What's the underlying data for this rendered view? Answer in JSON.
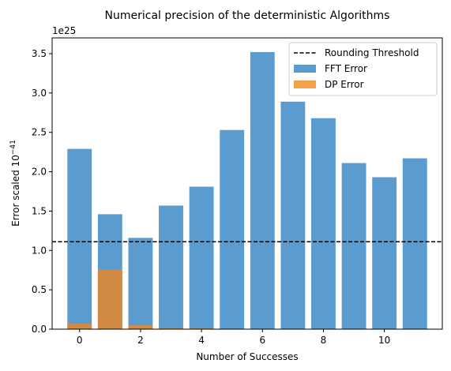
{
  "chart_data": {
    "type": "bar",
    "title": "Numerical precision of the deterministic Algorithms",
    "xlabel": "Number of Successes",
    "ylabel_prefix": "Error scaled 10",
    "ylabel_exponent": "−41",
    "offset_text": "1e25",
    "x": [
      0,
      1,
      2,
      3,
      4,
      5,
      6,
      7,
      8,
      9,
      10,
      11
    ],
    "series": [
      {
        "name": "FFT Error",
        "color": "#5a9bd0",
        "values": [
          2.29,
          1.46,
          1.16,
          1.57,
          1.81,
          2.53,
          3.52,
          2.89,
          2.68,
          2.11,
          1.93,
          2.17
        ]
      },
      {
        "name": "DP Error",
        "color": "#f5a04a",
        "values": [
          0.07,
          0.76,
          0.05,
          0.01,
          0.01,
          0.0,
          0.0,
          0.0,
          0.0,
          0.0,
          0.0,
          0.0
        ]
      }
    ],
    "threshold": {
      "name": "Rounding Threshold",
      "value": 1.11,
      "color": "#000000"
    },
    "xlim": [
      -0.9,
      11.9
    ],
    "ylim": [
      0,
      3.7
    ],
    "xticks": [
      0,
      2,
      4,
      6,
      8,
      10
    ],
    "yticks": [
      0.0,
      0.5,
      1.0,
      1.5,
      2.0,
      2.5,
      3.0,
      3.5
    ],
    "ytick_labels": [
      "0.0",
      "0.5",
      "1.0",
      "1.5",
      "2.0",
      "2.5",
      "3.0",
      "3.5"
    ],
    "overlap_color": "#d08a44",
    "legend_position": "top-right",
    "grid": false
  }
}
